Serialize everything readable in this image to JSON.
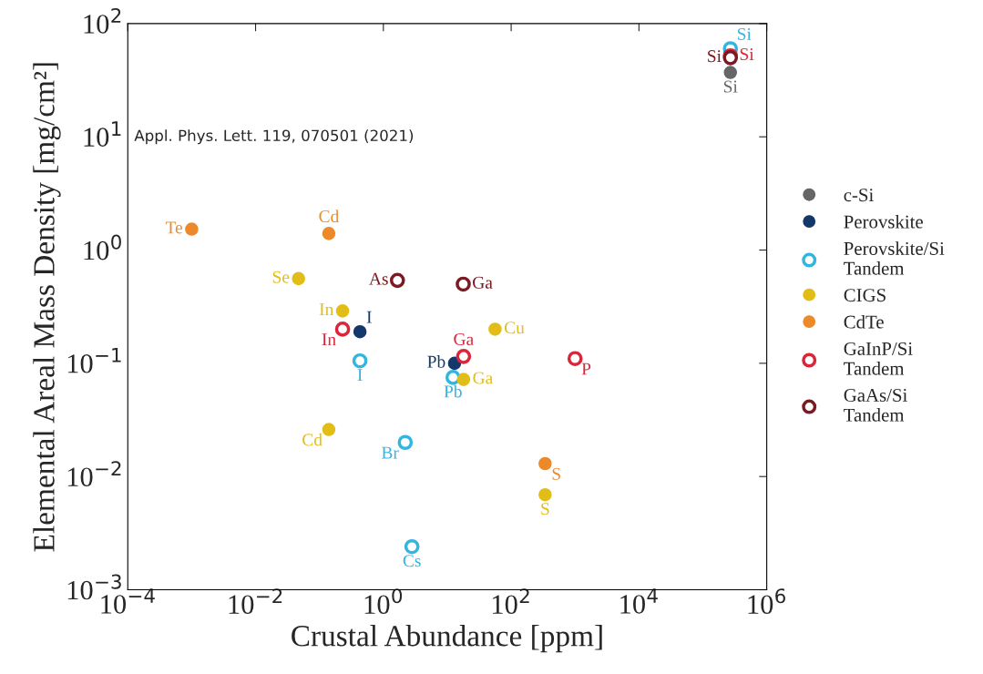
{
  "chart_data": {
    "type": "scatter",
    "xlabel": "Crustal Abundance [ppm]",
    "ylabel": "Elemental Areal Mass Density [mg/cm²]",
    "log": "xy",
    "xlim": [
      0.0001,
      1000000
    ],
    "ylim": [
      0.001,
      100
    ],
    "xticks": [
      {
        "value": 0.0001,
        "label": "10$^{−4}$"
      },
      {
        "value": 0.01,
        "label": "10$^{−2}$"
      },
      {
        "value": 1,
        "label": "10$^{0}$"
      },
      {
        "value": 100,
        "label": "10$^{2}$"
      },
      {
        "value": 10000,
        "label": "10$^{4}$"
      },
      {
        "value": 1000000,
        "label": "10$^{6}$"
      }
    ],
    "yticks": [
      {
        "value": 0.001,
        "label": "10$^{−3}$"
      },
      {
        "value": 0.01,
        "label": "10$^{−2}$"
      },
      {
        "value": 0.1,
        "label": "10$^{−1}$"
      },
      {
        "value": 1,
        "label": "10$^{0}$"
      },
      {
        "value": 10,
        "label": "10$^{1}$"
      },
      {
        "value": 100,
        "label": "10$^{2}$"
      }
    ],
    "grid": false,
    "legend": "right",
    "marker": "circle",
    "annotations": [
      "Appl. Phys. Lett. 119, 070501 (2021)"
    ],
    "series": [
      {
        "name": "c-Si",
        "color": "#666666",
        "x": [
          270000
        ],
        "values": [
          37
        ],
        "value_labels": [
          "Si"
        ]
      },
      {
        "name": "Perovskite",
        "color": "#14386b",
        "x": [
          0.43,
          13
        ],
        "values": [
          0.19,
          0.1
        ],
        "value_labels": [
          "I",
          "Pb"
        ]
      },
      {
        "name": "Perovskite/Si Tandem",
        "color": "#33b5e0",
        "marker": "circle-open",
        "x": [
          0.43,
          12.3,
          2.2,
          2.8,
          270000
        ],
        "values": [
          0.105,
          0.075,
          0.02,
          0.0024,
          60
        ],
        "value_labels": [
          "I",
          "Pb",
          "Br",
          "Cs",
          "Si"
        ]
      },
      {
        "name": "CIGS",
        "color": "#e3bd17",
        "x": [
          0.047,
          0.23,
          56,
          18,
          340,
          0.14
        ],
        "values": [
          0.56,
          0.29,
          0.2,
          0.072,
          0.0069,
          0.026
        ],
        "value_labels": [
          "Se",
          "In",
          "Cu",
          "Ga",
          "S",
          "Cd"
        ]
      },
      {
        "name": "CdTe",
        "color": "#ec8a2a",
        "x": [
          0.001,
          0.14,
          340
        ],
        "values": [
          1.53,
          1.4,
          0.013
        ],
        "value_labels": [
          "Te",
          "Cd",
          "S"
        ]
      },
      {
        "name": "GaInP/Si Tandem",
        "color": "#d9263a",
        "marker": "circle-open",
        "x": [
          0.23,
          18,
          1000,
          270000
        ],
        "values": [
          0.2,
          0.115,
          0.11,
          52
        ],
        "value_labels": [
          "In",
          "Ga",
          "P",
          "Si"
        ]
      },
      {
        "name": "GaAs/Si Tandem",
        "color": "#7a1a22",
        "marker": "circle-open",
        "x": [
          1.66,
          17.8,
          270000
        ],
        "values": [
          0.54,
          0.5,
          50
        ],
        "value_labels": [
          "As",
          "Ga",
          "Si"
        ]
      }
    ]
  }
}
